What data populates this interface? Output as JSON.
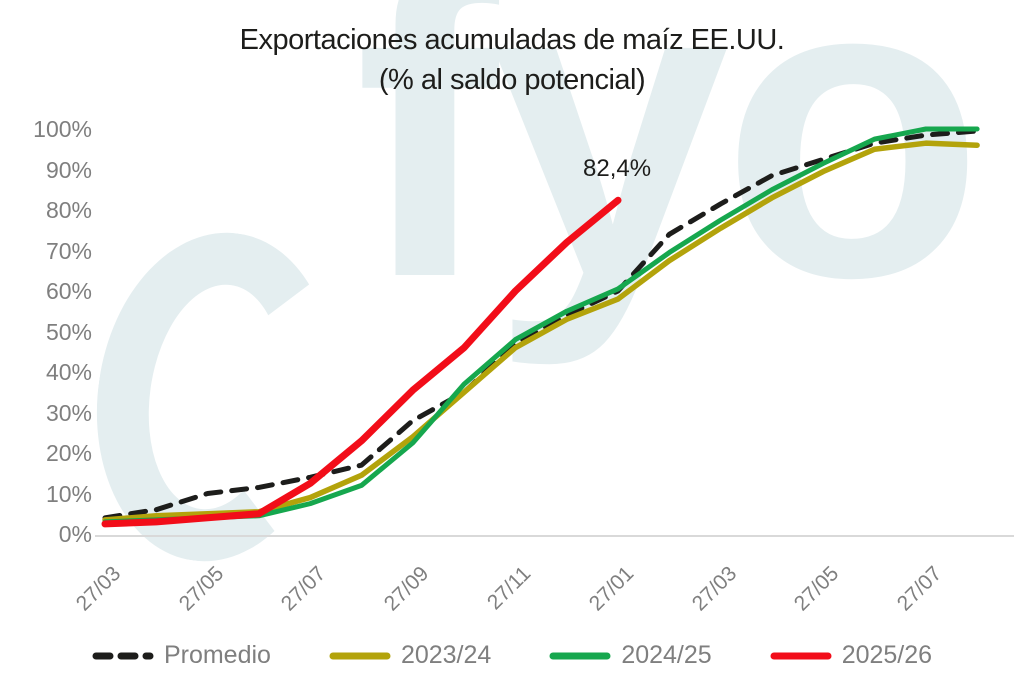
{
  "title": {
    "line1": "Exportaciones acumuladas de maíz EE.UU.",
    "line2": "(% al saldo potencial)"
  },
  "watermark": {
    "text": "fyo",
    "color": "#e4eef0"
  },
  "annotation": {
    "text": "82,4%",
    "series": "2025/26"
  },
  "colors": {
    "axis_line": "#d9d9d9",
    "tick_text": "#7f7f7f",
    "title_text": "#1d1d1b"
  },
  "chart_data": {
    "type": "line",
    "title": "Exportaciones acumuladas de maíz EE.UU. (% al saldo potencial)",
    "xlabel": "",
    "ylabel": "",
    "ylim": [
      0,
      100
    ],
    "grid": false,
    "legend_position": "bottom",
    "y_tick_labels": [
      "0%",
      "10%",
      "20%",
      "30%",
      "40%",
      "50%",
      "60%",
      "70%",
      "80%",
      "90%",
      "100%"
    ],
    "x_tick_labels": [
      "27/03",
      "27/05",
      "27/07",
      "27/09",
      "27/11",
      "27/01",
      "27/03",
      "27/05",
      "27/07"
    ],
    "categories": [
      "27/03",
      "27/04",
      "27/05",
      "27/06",
      "27/07",
      "27/08",
      "27/09",
      "27/10",
      "27/11",
      "27/12",
      "27/01",
      "27/02",
      "27/03",
      "27/04",
      "27/05",
      "27/06",
      "27/07",
      "27/08"
    ],
    "series": [
      {
        "name": "Promedio",
        "color": "#1d1d1b",
        "dash": true,
        "width": 5,
        "values": [
          4,
          6,
          10,
          11.5,
          14,
          17,
          28,
          35,
          47,
          54,
          60,
          74,
          81.5,
          88.5,
          92.5,
          96.5,
          98.5,
          99.5
        ]
      },
      {
        "name": "2023/24",
        "color": "#b3a30b",
        "dash": false,
        "width": 5.5,
        "values": [
          3.5,
          4.5,
          5,
          5.5,
          9,
          14.5,
          24,
          35,
          46,
          53,
          58,
          67.5,
          75.5,
          83,
          89.5,
          95,
          96.5,
          96
        ]
      },
      {
        "name": "2024/25",
        "color": "#16a74e",
        "dash": false,
        "width": 5,
        "values": [
          3,
          3.5,
          4,
          4.5,
          7.5,
          12,
          22.5,
          37,
          48,
          55,
          60.5,
          69.5,
          77.5,
          85,
          91.5,
          97.5,
          100,
          100
        ]
      },
      {
        "name": "2025/26",
        "color": "#f20d19",
        "dash": false,
        "width": 7,
        "values": [
          2.5,
          3,
          4,
          5,
          12.5,
          23,
          35.5,
          46,
          60,
          72,
          82.4
        ],
        "end_label": "82,4%"
      }
    ]
  }
}
